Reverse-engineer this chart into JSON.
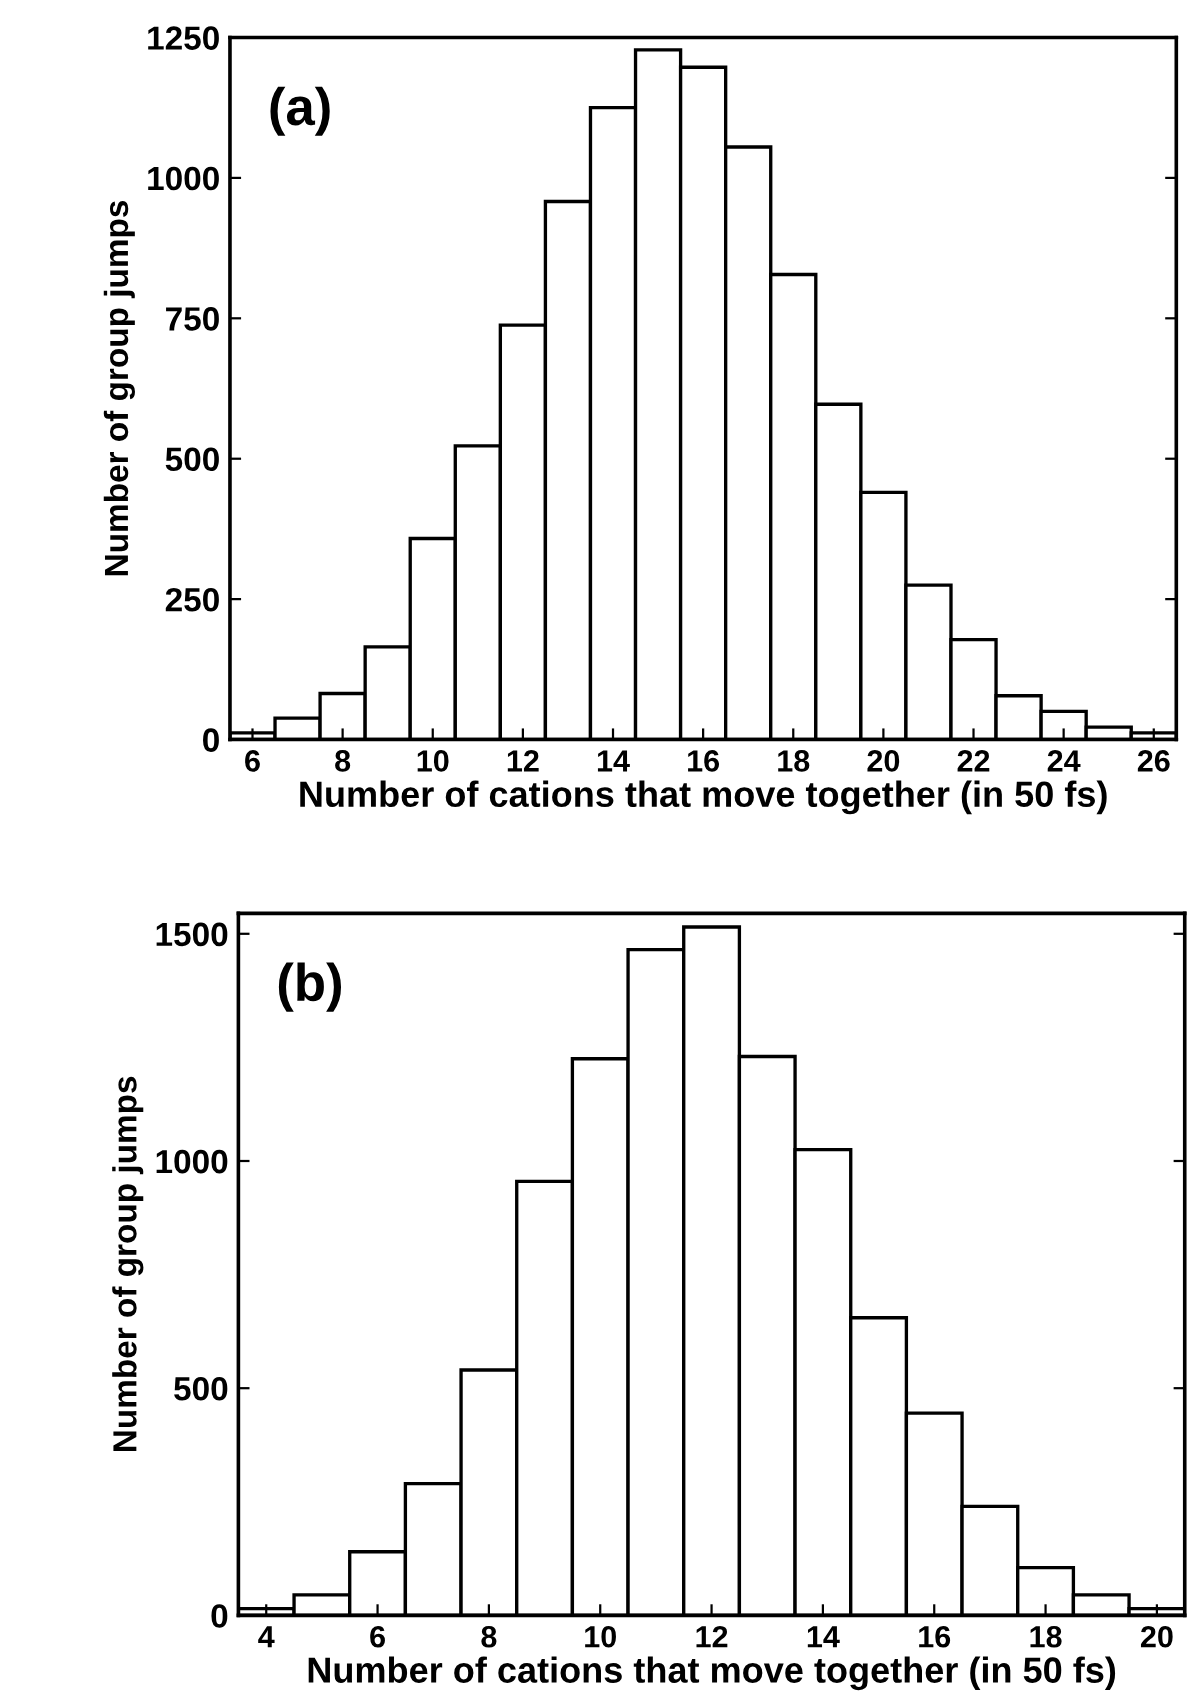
{
  "chart_data": [
    {
      "type": "histogram",
      "annotations": [
        "(a)"
      ],
      "xlabel": "Number of cations that move together (in 50 fs)",
      "ylabel": "Number of group jumps",
      "bins": [
        5.5,
        6.5,
        7.5,
        8.5,
        9.5,
        10.5,
        11.5,
        12.5,
        13.5,
        14.5,
        15.5,
        16.5,
        17.5,
        18.5,
        19.5,
        20.5,
        21.5,
        22.5,
        23.5,
        24.5,
        25.5,
        26.5
      ],
      "values": [
        12,
        38,
        82,
        165,
        358,
        523,
        738,
        958,
        1125,
        1228,
        1197,
        1055,
        828,
        597,
        440,
        275,
        178,
        78,
        50,
        22,
        12
      ],
      "color": "#ffffff",
      "xlim": [
        5.5,
        26.5
      ],
      "xticks": [
        6,
        8,
        10,
        12,
        14,
        16,
        18,
        20,
        22,
        24,
        26
      ],
      "ylim": [
        0,
        1250
      ],
      "yticks": [
        0,
        250,
        500,
        750,
        1000,
        1250
      ],
      "grid": false
    },
    {
      "type": "histogram",
      "annotations": [
        "(b)"
      ],
      "xlabel": "Number of cations that move together (in 50 fs)",
      "ylabel": "Number of group jumps",
      "bins": [
        3.5,
        4.5,
        5.5,
        6.5,
        7.5,
        8.5,
        9.5,
        10.5,
        11.5,
        12.5,
        13.5,
        14.5,
        15.5,
        16.5,
        17.5,
        18.5,
        19.5,
        20.5
      ],
      "values": [
        15,
        45,
        140,
        290,
        540,
        955,
        1225,
        1465,
        1515,
        1230,
        1025,
        655,
        445,
        240,
        105,
        45,
        15
      ],
      "color": "#ffffff",
      "xlim": [
        3.5,
        20.5
      ],
      "xticks": [
        4,
        6,
        8,
        10,
        12,
        14,
        16,
        18,
        20
      ],
      "ylim": [
        0,
        1545
      ],
      "yticks": [
        0,
        500,
        1000,
        1500
      ],
      "grid": false
    }
  ]
}
